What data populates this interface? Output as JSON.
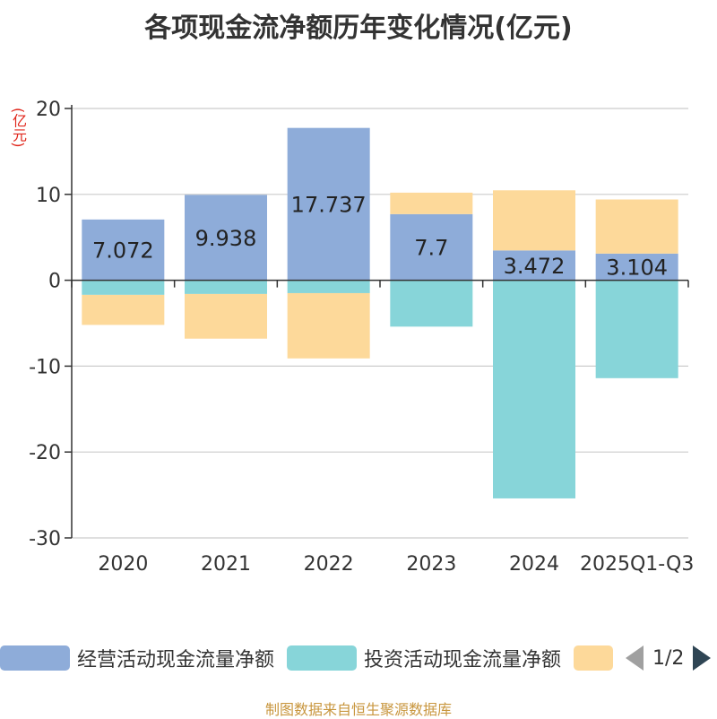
{
  "chart_data": {
    "type": "bar",
    "stacked": true,
    "title": "各项现金流净额历年变化情况(亿元)",
    "ylabel": "(亿元)",
    "categories": [
      "2020",
      "2021",
      "2022",
      "2023",
      "2024",
      "2025Q1-Q3"
    ],
    "ylim": [
      -30,
      20
    ],
    "yticks": [
      20,
      10,
      0,
      -10,
      -20,
      -30
    ],
    "series": [
      {
        "name": "经营活动现金流量净额",
        "color": "#8eacd9",
        "values": [
          7.072,
          9.938,
          17.737,
          7.7,
          3.472,
          3.104
        ],
        "labels": [
          "7.072",
          "9.938",
          "17.737",
          "7.7",
          "3.472",
          "3.104"
        ]
      },
      {
        "name": "投资活动现金流量净额",
        "color": "#87d5d9",
        "values": [
          -1.7,
          -1.6,
          -1.5,
          -5.4,
          -25.4,
          -11.4
        ]
      },
      {
        "name": "",
        "color": "#fdd99a",
        "values": [
          -3.5,
          -5.2,
          -7.6,
          2.5,
          7.0,
          6.3
        ]
      }
    ]
  },
  "legend": {
    "page": "1/2"
  },
  "source": "制图数据来自恒生聚源数据库"
}
